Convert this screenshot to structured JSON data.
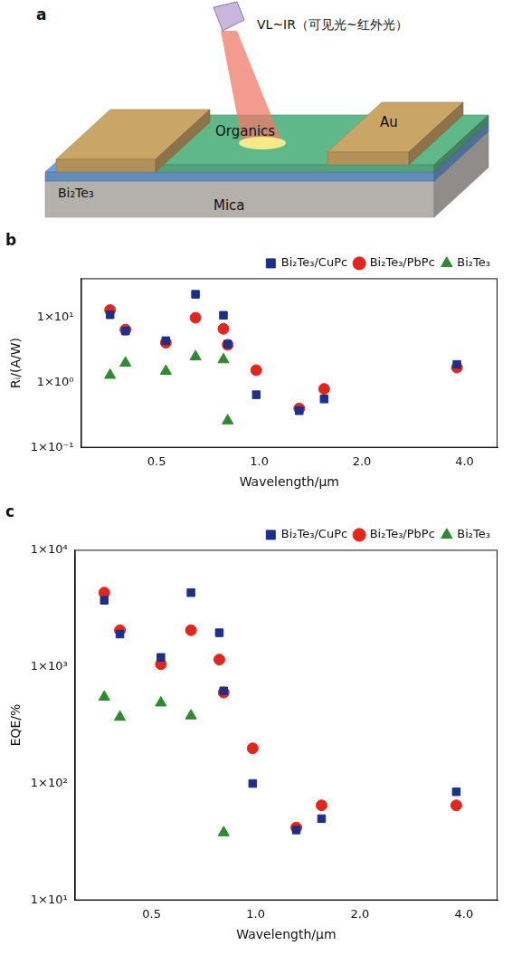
{
  "diagram": {
    "label": "a",
    "light": "VL~IR（可见光~红外光）",
    "layers": {
      "top": "Organics",
      "middle": "Bi₂Te₃",
      "substrate": "Mica"
    },
    "electrode": "Au"
  },
  "chart_data": [
    {
      "type": "scatter",
      "title": "b",
      "x_label": "Wavelength/μm",
      "y_label": "Rᵢ/(A/W)",
      "x": [
        0.365,
        0.405,
        0.532,
        0.65,
        0.785,
        0.808,
        0.98,
        1.31,
        1.55,
        3.8
      ],
      "xlim": [
        0.3,
        5
      ],
      "xticks": [
        0.5,
        {
          "value": 1,
          "label": "1.0"
        },
        {
          "value": 2,
          "label": "2.0"
        },
        {
          "value": 4,
          "label": "4.0"
        }
      ],
      "ylim": [
        0.1,
        40
      ],
      "yticks": [
        {
          "value": 0.1,
          "label": "1×10⁻¹"
        },
        {
          "value": 1,
          "label": "1×10⁰"
        },
        {
          "value": 10,
          "label": "1×10¹"
        }
      ],
      "log": true,
      "grid": false,
      "legend": "top",
      "series": [
        {
          "name": "Bi₂Te₃/CuPc",
          "color": "#1c2f8a",
          "marker": "square",
          "values": [
            11,
            6.2,
            4.4,
            22.7,
            10.8,
            3.9,
            0.65,
            0.37,
            0.56,
            1.9
          ]
        },
        {
          "name": "Bi₂Te₃/PbPc",
          "color": "#e3261c",
          "marker": "circle",
          "values": [
            13,
            6.5,
            4.1,
            9.9,
            6.7,
            3.8,
            1.55,
            0.4,
            0.8,
            1.7
          ]
        },
        {
          "name": "Bi₂Te₃",
          "color": "#2e8b2e",
          "marker": "triangle",
          "values": [
            1.3,
            2.0,
            1.5,
            2.5,
            2.25,
            0.26,
            null,
            null,
            null,
            null
          ]
        }
      ]
    },
    {
      "type": "scatter",
      "title": "c",
      "x_label": "Wavelength/μm",
      "y_label": "EQE/%",
      "x": [
        0.365,
        0.405,
        0.532,
        0.65,
        0.785,
        0.808,
        0.98,
        1.31,
        1.55,
        3.8
      ],
      "xlim": [
        0.3,
        5
      ],
      "xticks": [
        0.5,
        {
          "value": 1,
          "label": "1.0"
        },
        {
          "value": 2,
          "label": "2.0"
        },
        {
          "value": 4,
          "label": "4.0"
        }
      ],
      "ylim": [
        10,
        10000
      ],
      "yticks": [
        {
          "value": 10,
          "label": "1×10¹"
        },
        {
          "value": 100,
          "label": "1×10²"
        },
        {
          "value": 1000,
          "label": "1×10³"
        },
        {
          "value": 10000,
          "label": "1×10⁴"
        }
      ],
      "log": true,
      "grid": false,
      "legend": "top",
      "series": [
        {
          "name": "Bi₂Te₃/CuPc",
          "color": "#1c2f8a",
          "marker": "square",
          "values": [
            3700,
            1900,
            1200,
            4300,
            1950,
            620,
            100,
            40,
            50,
            85
          ]
        },
        {
          "name": "Bi₂Te₃/PbPc",
          "color": "#e3261c",
          "marker": "circle",
          "values": [
            4300,
            2050,
            1050,
            2050,
            1150,
            600,
            200,
            42,
            65,
            65
          ]
        },
        {
          "name": "Bi₂Te₃",
          "color": "#2e8b2e",
          "marker": "triangle",
          "values": [
            550,
            370,
            490,
            380,
            null,
            38,
            null,
            null,
            null,
            null
          ]
        }
      ]
    }
  ]
}
